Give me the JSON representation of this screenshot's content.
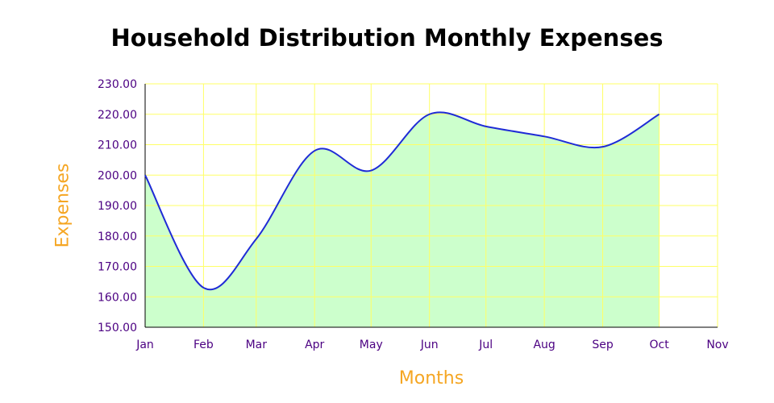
{
  "chart_data": {
    "type": "area",
    "title": "Household Distribution Monthly Expenses",
    "xlabel": "Months",
    "ylabel": "Expenses",
    "categories": [
      "Jan",
      "Feb",
      "Mar",
      "Apr",
      "May",
      "Jun",
      "Jul",
      "Aug",
      "Sep",
      "Oct",
      "Nov"
    ],
    "ylim": [
      150,
      230
    ],
    "y_ticks": [
      "150.00",
      "160.00",
      "170.00",
      "180.00",
      "190.00",
      "200.00",
      "210.00",
      "220.00",
      "230.00"
    ],
    "series": [
      {
        "points": [
          {
            "x": "Jan",
            "y": 200
          },
          {
            "x": "Feb",
            "y": 163
          },
          {
            "x": "Mar",
            "y": 179
          },
          {
            "x": "Apr",
            "y": 208
          },
          {
            "x": "May",
            "y": 201.5
          },
          {
            "x": "Jun",
            "y": 220
          },
          {
            "x": "Jul",
            "y": 216
          },
          {
            "x": "Aug",
            "y": 212.7
          },
          {
            "x": "Sep",
            "y": 209.3
          },
          {
            "x": "Oct",
            "y": 220
          }
        ]
      }
    ],
    "grid": true,
    "colors": {
      "line": "#1f2bd6",
      "fill": "#ccffcc",
      "grid": "#ffff66",
      "tick_labels": "#4b0082",
      "axis_titles": "#f5a623"
    }
  }
}
